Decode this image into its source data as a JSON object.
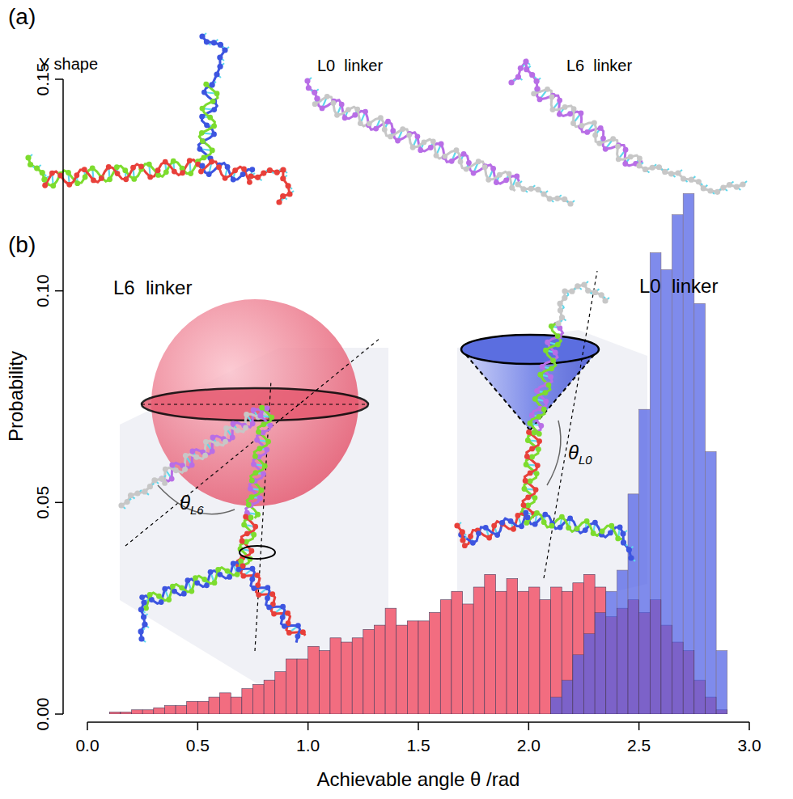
{
  "panel_a": {
    "label": "(a)",
    "structures": [
      "Y shape",
      "L0  linker",
      "L6  linker"
    ]
  },
  "panel_b": {
    "label": "(b)"
  },
  "chart_data": {
    "type": "histogram",
    "x_label": "Achievable angle θ /rad",
    "y_label": "Probability",
    "xlim": [
      0,
      3
    ],
    "ylim": [
      0,
      0.15
    ],
    "xticks": [
      {
        "value": 0,
        "label": "0.0"
      },
      {
        "value": 0.5,
        "label": "0.5"
      },
      {
        "value": 1,
        "label": "1.0"
      },
      {
        "value": 1.5,
        "label": "1.5"
      },
      {
        "value": 2,
        "label": "2.0"
      },
      {
        "value": 2.5,
        "label": "2.5"
      },
      {
        "value": 3,
        "label": "3.0"
      }
    ],
    "yticks": [
      {
        "value": 0,
        "label": "0.00"
      },
      {
        "value": 0.05,
        "label": "0.05"
      },
      {
        "value": 0.1,
        "label": "0.10"
      },
      {
        "value": 0.15,
        "label": "0.15"
      }
    ],
    "grid": false,
    "series": [
      {
        "name": "L6  linker",
        "color": "#f26d80",
        "bins": [
          0.1,
          0.15,
          0.2,
          0.25,
          0.3,
          0.35,
          0.4,
          0.45,
          0.5,
          0.55,
          0.6,
          0.65,
          0.7,
          0.75,
          0.8,
          0.85,
          0.9,
          0.95,
          1.0,
          1.05,
          1.1,
          1.15,
          1.2,
          1.25,
          1.3,
          1.35,
          1.4,
          1.45,
          1.5,
          1.55,
          1.6,
          1.65,
          1.7,
          1.75,
          1.8,
          1.85,
          1.9,
          1.95,
          2.0,
          2.05,
          2.1,
          2.15,
          2.2,
          2.25,
          2.3,
          2.35,
          2.4,
          2.45,
          2.5,
          2.55,
          2.6,
          2.65,
          2.7,
          2.75,
          2.8,
          2.85,
          2.9
        ],
        "values": [
          0.0005,
          0.0005,
          0.001,
          0.001,
          0.0015,
          0.002,
          0.002,
          0.003,
          0.003,
          0.004,
          0.005,
          0.004,
          0.006,
          0.007,
          0.008,
          0.01,
          0.013,
          0.013,
          0.016,
          0.015,
          0.018,
          0.017,
          0.018,
          0.02,
          0.021,
          0.025,
          0.021,
          0.022,
          0.022,
          0.024,
          0.027,
          0.029,
          0.026,
          0.03,
          0.033,
          0.029,
          0.032,
          0.029,
          0.03,
          0.027,
          0.03,
          0.029,
          0.031,
          0.033,
          0.03,
          0.023,
          0.025,
          0.027,
          0.024,
          0.027,
          0.021,
          0.017,
          0.015,
          0.008,
          0.004,
          0.001
        ]
      },
      {
        "name": "L0  linker",
        "color": "#4f5fe6",
        "bins": [
          2.1,
          2.15,
          2.2,
          2.25,
          2.3,
          2.35,
          2.4,
          2.45,
          2.5,
          2.55,
          2.6,
          2.65,
          2.7,
          2.75,
          2.8,
          2.85,
          2.9
        ],
        "values": [
          0.004,
          0.008,
          0.014,
          0.019,
          0.024,
          0.029,
          0.034,
          0.052,
          0.072,
          0.109,
          0.105,
          0.118,
          0.123,
          0.097,
          0.062,
          0.015
        ]
      }
    ],
    "annotations": [
      {
        "text": "θ",
        "subscript": "L6"
      },
      {
        "text": "θ",
        "subscript": "L0"
      }
    ]
  }
}
